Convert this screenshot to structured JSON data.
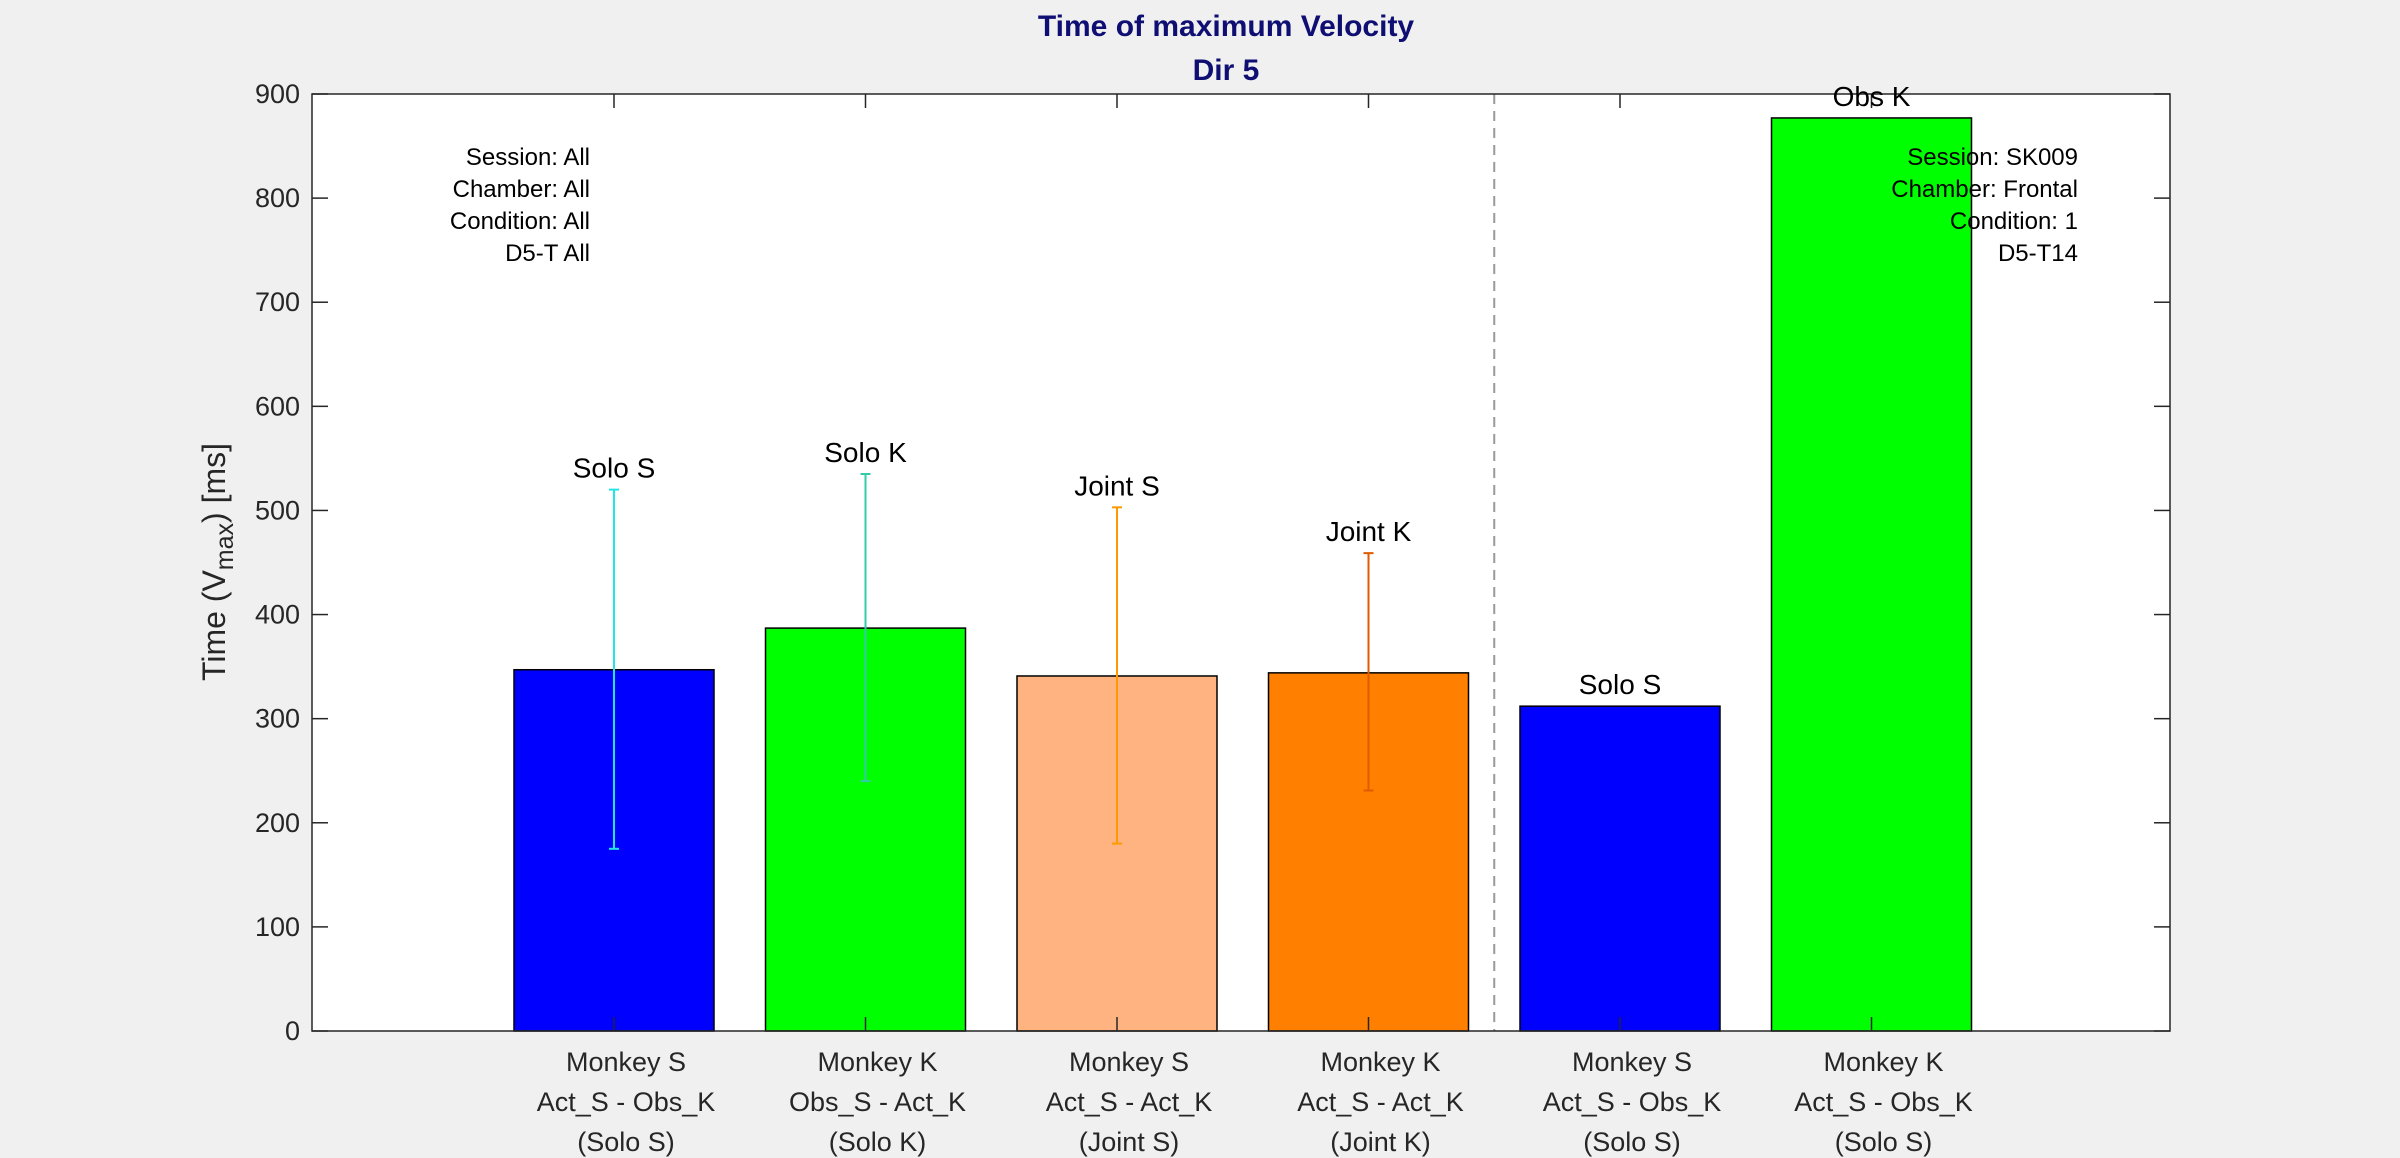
{
  "chart_data": {
    "type": "bar",
    "title": "Time of maximum Velocity",
    "subtitle": "Dir 5",
    "ylabel": {
      "pre": "Time (V",
      "sub": "max",
      "post": ") [ms]"
    },
    "ylim": [
      0,
      900
    ],
    "yticks": [
      0,
      100,
      200,
      300,
      400,
      500,
      600,
      700,
      800,
      900
    ],
    "grid": false,
    "categories": [
      [
        "Monkey S",
        "Act_S - Obs_K",
        "(Solo S)"
      ],
      [
        "Monkey K",
        "Obs_S - Act_K",
        "(Solo K)"
      ],
      [
        "Monkey S",
        "Act_S - Act_K",
        "(Joint S)"
      ],
      [
        "Monkey K",
        "Act_S - Act_K",
        "(Joint K)"
      ],
      [
        "Monkey S",
        "Act_S - Obs_K",
        "(Solo S)"
      ],
      [
        "Monkey K",
        "Act_S - Obs_K",
        "(Solo S)"
      ]
    ],
    "bars": [
      {
        "label": "Solo S",
        "value": 347,
        "err_low": 175,
        "err_high": 520,
        "color": "#0000ff",
        "err_color": "#22e6e6"
      },
      {
        "label": "Solo K",
        "value": 387,
        "err_low": 240,
        "err_high": 535,
        "color": "#00ff00",
        "err_color": "#33ccaa"
      },
      {
        "label": "Joint S",
        "value": 341,
        "err_low": 180,
        "err_high": 503,
        "color": "#ffb380",
        "err_color": "#ff9900"
      },
      {
        "label": "Joint K",
        "value": 344,
        "err_low": 231,
        "err_high": 459,
        "color": "#ff8000",
        "err_color": "#e05a00"
      },
      {
        "label": "Solo S",
        "value": 312,
        "color": "#0000ff"
      },
      {
        "label": "Obs K",
        "value": 877,
        "color": "#00ff00"
      }
    ],
    "divider_after_index": 3,
    "annotations": {
      "left": [
        "Session: All",
        "Chamber: All",
        "Condition: All",
        "D5-T All"
      ],
      "right": [
        "Session: SK009",
        "Chamber: Frontal",
        "Condition: 1",
        "D5-T14"
      ]
    }
  }
}
